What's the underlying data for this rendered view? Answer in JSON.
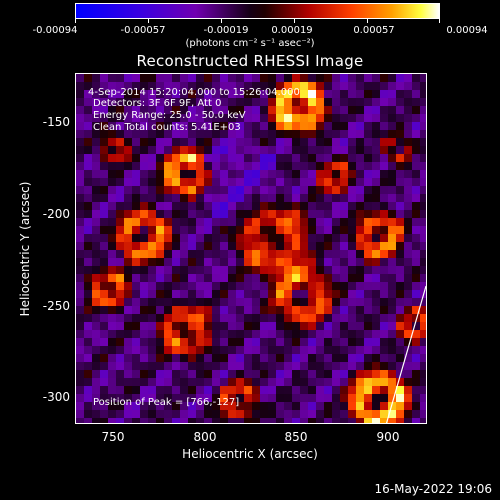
{
  "colorbar": {
    "tick_labels": [
      "-0.00094",
      "-0.00057",
      "-0.00019",
      "0.00019",
      "0.00057",
      "0.00094"
    ],
    "units": "(photons cm⁻² s⁻¹ asec⁻²)",
    "colors": [
      "#0000ff",
      "#5a00c0",
      "#9000a0",
      "#000000",
      "#a00000",
      "#ff3000",
      "#ff9000",
      "#ffff00",
      "#ffffff"
    ]
  },
  "title": "Reconstructed RHESSI Image",
  "info": {
    "time": "4-Sep-2014 15:20:04.000 to 15:26:04.000",
    "detectors": "Detectors: 3F 6F 9F, Att 0",
    "energy": "Energy Range: 25.0 - 50.0 keV",
    "clean": "Clean    Total counts: 5.41E+03",
    "peak": "Position of Peak = [766,-127]"
  },
  "axes": {
    "xlabel": "Heliocentric X (arcsec)",
    "ylabel": "Heliocentric Y (arcsec)",
    "xticks": [
      "750",
      "800",
      "850",
      "900"
    ],
    "yticks": [
      "-150",
      "-200",
      "-250",
      "-300"
    ]
  },
  "timestamp": "16-May-2022 19:06"
}
